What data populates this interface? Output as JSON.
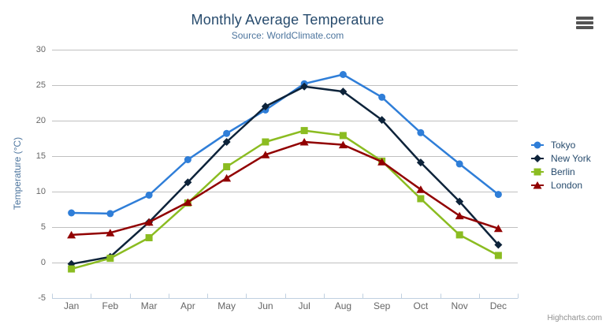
{
  "chart": {
    "title": "Monthly Average Temperature",
    "subtitle": "Source: WorldClimate.com",
    "credits": "Highcharts.com",
    "icons": {
      "export_menu": "hamburger-icon"
    }
  },
  "chart_data": {
    "type": "line",
    "title": "Monthly Average Temperature",
    "subtitle": "Source: WorldClimate.com",
    "categories": [
      "Jan",
      "Feb",
      "Mar",
      "Apr",
      "May",
      "Jun",
      "Jul",
      "Aug",
      "Sep",
      "Oct",
      "Nov",
      "Dec"
    ],
    "series": [
      {
        "name": "Tokyo",
        "color": "#2f7ed8",
        "marker": "circle",
        "values": [
          7.0,
          6.9,
          9.5,
          14.5,
          18.2,
          21.5,
          25.2,
          26.5,
          23.3,
          18.3,
          13.9,
          9.6
        ]
      },
      {
        "name": "New York",
        "color": "#0d233a",
        "marker": "diamond",
        "values": [
          -0.2,
          0.8,
          5.7,
          11.3,
          17.0,
          22.0,
          24.8,
          24.1,
          20.1,
          14.1,
          8.6,
          2.5
        ]
      },
      {
        "name": "Berlin",
        "color": "#8bbc21",
        "marker": "square",
        "values": [
          -0.9,
          0.6,
          3.5,
          8.4,
          13.5,
          17.0,
          18.6,
          17.9,
          14.3,
          9.0,
          3.9,
          1.0
        ]
      },
      {
        "name": "London",
        "color": "#910000",
        "marker": "triangle",
        "values": [
          3.9,
          4.2,
          5.7,
          8.5,
          11.9,
          15.2,
          17.0,
          16.6,
          14.2,
          10.3,
          6.6,
          4.8
        ]
      }
    ],
    "xlabel": "",
    "ylabel": "Temperature (°C)",
    "ylim": [
      -5,
      30
    ],
    "yticks": [
      -5,
      0,
      5,
      10,
      15,
      20,
      25,
      30
    ],
    "grid": "horizontal-only",
    "legend_position": "right",
    "axis_colors": {
      "grid": "#C0C0C0",
      "axis_line": "#C0D0E0",
      "tick": "#C0D0E0",
      "label": "#666666"
    }
  }
}
